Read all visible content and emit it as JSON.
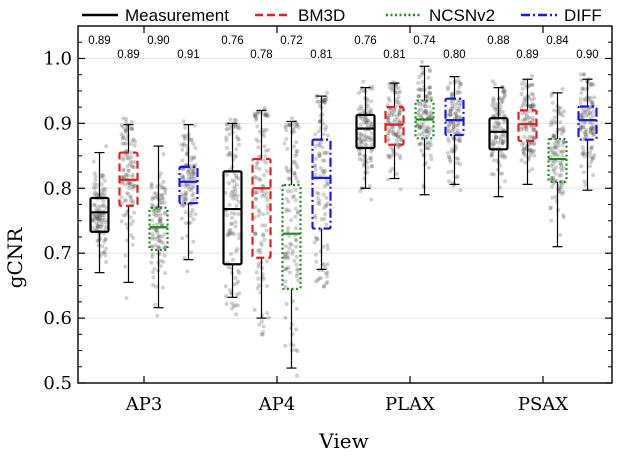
{
  "chart_data": {
    "type": "box",
    "xlabel": "View",
    "ylabel": "gCNR",
    "ylim": [
      0.5,
      1.05
    ],
    "yticks": [
      0.5,
      0.6,
      0.7,
      0.8,
      0.9,
      1.0
    ],
    "ytick_labels": [
      "0.5",
      "0.6",
      "0.7",
      "0.8",
      "0.9",
      "1.0"
    ],
    "grid": true,
    "legend_position": "top",
    "categories": [
      "AP3",
      "AP4",
      "PLAX",
      "PSAX"
    ],
    "series": [
      {
        "name": "Measurement",
        "color": "#000000",
        "dash": "solid",
        "labels": [
          "0.89",
          "0.76",
          "0.76",
          "0.88"
        ],
        "boxes": [
          {
            "whislo": 0.67,
            "q1": 0.733,
            "med": 0.763,
            "q3": 0.785,
            "whishi": 0.855
          },
          {
            "whislo": 0.632,
            "q1": 0.683,
            "med": 0.768,
            "q3": 0.826,
            "whishi": 0.9
          },
          {
            "whislo": 0.8,
            "q1": 0.862,
            "med": 0.892,
            "q3": 0.913,
            "whishi": 0.955
          },
          {
            "whislo": 0.787,
            "q1": 0.86,
            "med": 0.887,
            "q3": 0.908,
            "whishi": 0.955
          }
        ]
      },
      {
        "name": "BM3D",
        "color": "#e02020",
        "dash": "dashed",
        "labels": [
          "0.89",
          "0.78",
          "0.81",
          "0.89"
        ],
        "boxes": [
          {
            "whislo": 0.655,
            "q1": 0.773,
            "med": 0.813,
            "q3": 0.855,
            "whishi": 0.898
          },
          {
            "whislo": 0.6,
            "q1": 0.693,
            "med": 0.8,
            "q3": 0.845,
            "whishi": 0.92
          },
          {
            "whislo": 0.815,
            "q1": 0.867,
            "med": 0.898,
            "q3": 0.925,
            "whishi": 0.962
          },
          {
            "whislo": 0.806,
            "q1": 0.873,
            "med": 0.899,
            "q3": 0.92,
            "whishi": 0.968
          }
        ]
      },
      {
        "name": "NCSNv2",
        "color": "#1a8a1a",
        "dash": "dotted",
        "labels": [
          "0.90",
          "0.72",
          "0.74",
          "0.84"
        ],
        "boxes": [
          {
            "whislo": 0.616,
            "q1": 0.705,
            "med": 0.74,
            "q3": 0.77,
            "whishi": 0.865
          },
          {
            "whislo": 0.523,
            "q1": 0.645,
            "med": 0.73,
            "q3": 0.805,
            "whishi": 0.903
          },
          {
            "whislo": 0.79,
            "q1": 0.877,
            "med": 0.906,
            "q3": 0.935,
            "whishi": 0.988
          },
          {
            "whislo": 0.71,
            "q1": 0.81,
            "med": 0.845,
            "q3": 0.876,
            "whishi": 0.947
          }
        ]
      },
      {
        "name": "DIFF",
        "color": "#1a1adc",
        "dash": "dashdot",
        "labels": [
          "0.91",
          "0.81",
          "0.80",
          "0.90"
        ],
        "boxes": [
          {
            "whislo": 0.69,
            "q1": 0.777,
            "med": 0.81,
            "q3": 0.833,
            "whishi": 0.898
          },
          {
            "whislo": 0.675,
            "q1": 0.738,
            "med": 0.816,
            "q3": 0.875,
            "whishi": 0.942
          },
          {
            "whislo": 0.806,
            "q1": 0.882,
            "med": 0.905,
            "q3": 0.938,
            "whishi": 0.972
          },
          {
            "whislo": 0.797,
            "q1": 0.875,
            "med": 0.905,
            "q3": 0.926,
            "whishi": 0.968
          }
        ]
      }
    ]
  }
}
